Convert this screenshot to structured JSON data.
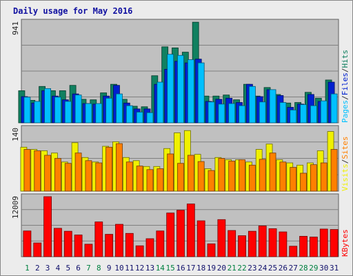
{
  "chart_data": {
    "type": "bar",
    "title": "Daily usage for May 2016",
    "categories": [
      "1",
      "2",
      "3",
      "4",
      "5",
      "6",
      "7",
      "8",
      "9",
      "10",
      "11",
      "12",
      "13",
      "14",
      "15",
      "16",
      "17",
      "18",
      "19",
      "20",
      "21",
      "22",
      "23",
      "24",
      "25",
      "26",
      "27",
      "28",
      "29",
      "30",
      "31"
    ],
    "weekend_days": [
      "1",
      "7",
      "8",
      "14",
      "15",
      "21",
      "22",
      "28",
      "29"
    ],
    "panels": [
      {
        "name": "pages-files-hits",
        "ymax_label": "941",
        "ylim": [
          0,
          941
        ],
        "legend": [
          "Pages",
          "/",
          "Files",
          "/",
          "Hits"
        ],
        "legend_colors": [
          "#00c0ff",
          "#333333",
          "#0020d0",
          "#333333",
          "#108060"
        ],
        "series": [
          {
            "name": "Hits",
            "color": "#108060",
            "values": [
              300,
              210,
              340,
              300,
              300,
              350,
              220,
              215,
              280,
              360,
              220,
              155,
              150,
              440,
              710,
              700,
              660,
              940,
              250,
              250,
              260,
              215,
              360,
              250,
              330,
              265,
              185,
              190,
              285,
              230,
              400
            ]
          },
          {
            "name": "Files",
            "color": "#0020d0",
            "values": [
              245,
              185,
              300,
              250,
              215,
              270,
              180,
              175,
              250,
              350,
              185,
              130,
              130,
              360,
              500,
              575,
              560,
              595,
              200,
              220,
              230,
              190,
              360,
              245,
              310,
              255,
              145,
              175,
              265,
              200,
              380
            ]
          },
          {
            "name": "Pages",
            "color": "#00c0ff",
            "values": [
              240,
              200,
              320,
              240,
              200,
              260,
              180,
              180,
              230,
              270,
              160,
              100,
              95,
              380,
              640,
              630,
              590,
              560,
              195,
              175,
              180,
              160,
              340,
              195,
              310,
              190,
              120,
              170,
              160,
              205,
              270
            ]
          }
        ]
      },
      {
        "name": "visits-sites",
        "ymax_label": "140",
        "ylim": [
          0,
          140
        ],
        "legend": [
          "Visits",
          "/",
          "Sites"
        ],
        "legend_colors": [
          "#f0f000",
          "#333333",
          "#ff8000"
        ],
        "series": [
          {
            "name": "Visits",
            "color": "#f0f000",
            "values": [
              98,
              93,
              90,
              85,
              65,
              108,
              75,
              65,
              100,
              110,
              75,
              68,
              55,
              55,
              95,
              130,
              135,
              82,
              50,
              75,
              70,
              70,
              65,
              93,
              105,
              70,
              63,
              58,
              63,
              90,
              133
            ]
          },
          {
            "name": "Sites",
            "color": "#ff8000",
            "values": [
              93,
              90,
              80,
              73,
              62,
              85,
              68,
              63,
              98,
              106,
              65,
              56,
              48,
              50,
              83,
              62,
              80,
              66,
              46,
              73,
              67,
              70,
              58,
              71,
              85,
              65,
              53,
              40,
              59,
              63,
              93
            ]
          }
        ]
      },
      {
        "name": "kbytes",
        "ymax_label": "12009",
        "ylim": [
          0,
          12009
        ],
        "legend": [
          "KBytes"
        ],
        "legend_colors": [
          "#ff0000"
        ],
        "series": [
          {
            "name": "KBytes",
            "color": "#ff0000",
            "values": [
              5150,
              2750,
              12009,
              5680,
              5090,
              4350,
              2500,
              6960,
              4480,
              6480,
              4660,
              2180,
              3600,
              5150,
              8740,
              9300,
              10550,
              7180,
              2570,
              7420,
              5240,
              4200,
              5090,
              6160,
              5600,
              4960,
              2100,
              4080,
              3930,
              5530,
              5440
            ]
          }
        ]
      }
    ]
  }
}
